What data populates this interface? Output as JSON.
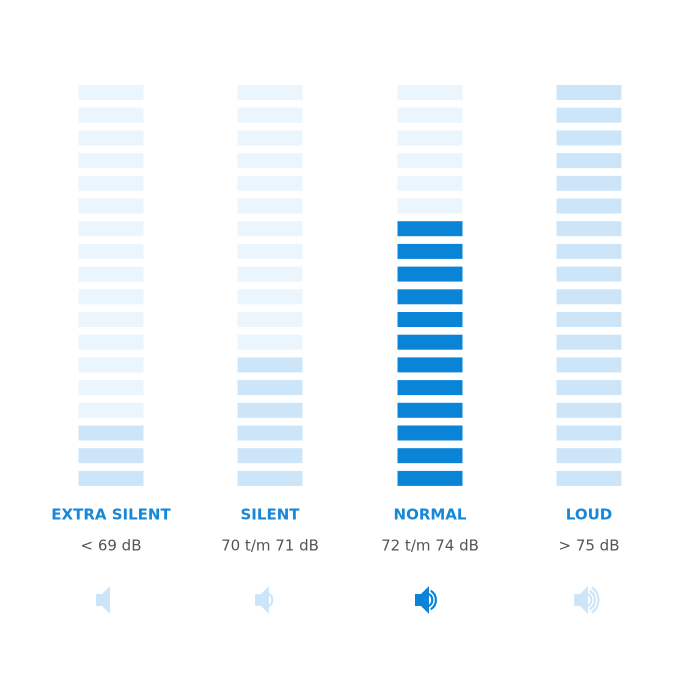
{
  "segments": 18,
  "empty_color": "#ebf5fd",
  "label_color": "#1787d8",
  "columns": [
    {
      "label": "EXTRA SILENT",
      "range": "< 69 dB",
      "level": 3,
      "color": "#cde5f8",
      "waves": 0
    },
    {
      "label": "SILENT",
      "range": "70 t/m 71 dB",
      "level": 6,
      "color": "#cde5f8",
      "waves": 1
    },
    {
      "label": "NORMAL",
      "range": "72 t/m 74 dB",
      "level": 12,
      "color": "#0a84d6",
      "waves": 2
    },
    {
      "label": "LOUD",
      "range": "> 75 dB",
      "level": 18,
      "color": "#cde5f8",
      "waves": 3
    }
  ]
}
